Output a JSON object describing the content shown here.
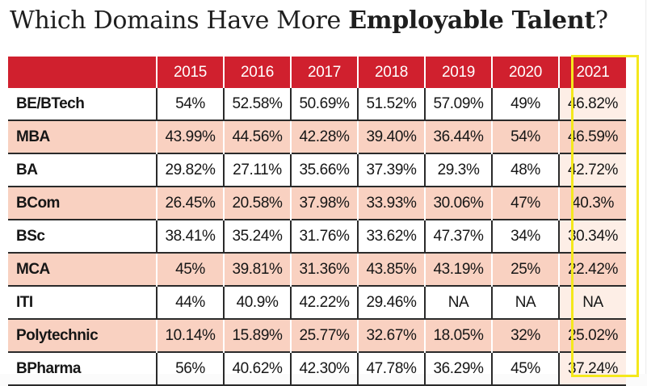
{
  "title": {
    "regular": "Which Domains Have More ",
    "bold": "Employable Talent",
    "suffix": "?"
  },
  "highlight": {
    "column": "2021",
    "outline_color": "#f4e81c"
  },
  "colors": {
    "header_bg": "#d0202e",
    "alt_row_bg": "#f9d1c1",
    "highlight_cell_bg": "#fdeee6"
  },
  "chart_data": {
    "type": "table",
    "title": "Which Domains Have More Employable Talent?",
    "columns": [
      "2015",
      "2016",
      "2017",
      "2018",
      "2019",
      "2020",
      "2021"
    ],
    "rows": [
      {
        "domain": "BE/BTech",
        "values": [
          "54%",
          "52.58%",
          "50.69%",
          "51.52%",
          "57.09%",
          "49%",
          "46.82%"
        ]
      },
      {
        "domain": "MBA",
        "values": [
          "43.99%",
          "44.56%",
          "42.28%",
          "39.40%",
          "36.44%",
          "54%",
          "46.59%"
        ]
      },
      {
        "domain": "BA",
        "values": [
          "29.82%",
          "27.11%",
          "35.66%",
          "37.39%",
          "29.3%",
          "48%",
          "42.72%"
        ]
      },
      {
        "domain": "BCom",
        "values": [
          "26.45%",
          "20.58%",
          "37.98%",
          "33.93%",
          "30.06%",
          "47%",
          "40.3%"
        ]
      },
      {
        "domain": "BSc",
        "values": [
          "38.41%",
          "35.24%",
          "31.76%",
          "33.62%",
          "47.37%",
          "34%",
          "30.34%"
        ]
      },
      {
        "domain": "MCA",
        "values": [
          "45%",
          "39.81%",
          "31.36%",
          "43.85%",
          "43.19%",
          "25%",
          "22.42%"
        ]
      },
      {
        "domain": "ITI",
        "values": [
          "44%",
          "40.9%",
          "42.22%",
          "29.46%",
          "NA",
          "NA",
          "NA"
        ]
      },
      {
        "domain": "Polytechnic",
        "values": [
          "10.14%",
          "15.89%",
          "25.77%",
          "32.67%",
          "18.05%",
          "32%",
          "25.02%"
        ]
      },
      {
        "domain": "BPharma",
        "values": [
          "56%",
          "40.62%",
          "42.30%",
          "47.78%",
          "36.29%",
          "45%",
          "37.24%"
        ]
      }
    ]
  }
}
